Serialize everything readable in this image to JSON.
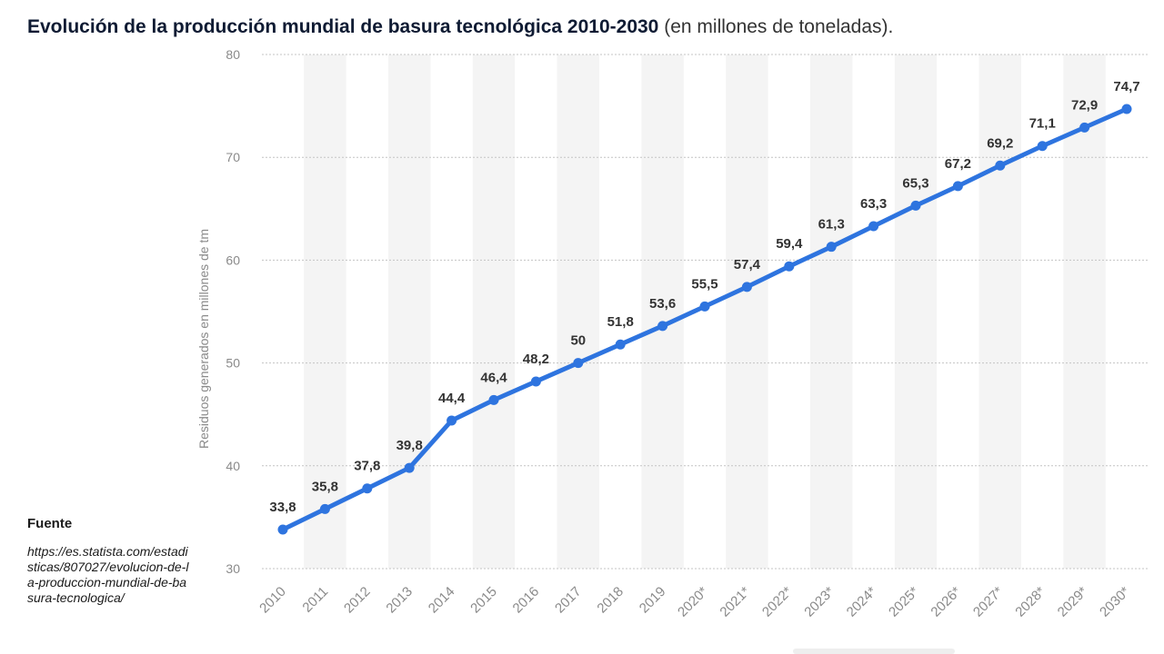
{
  "title": {
    "bold": "Evolución de la producción mundial de basura tecnológica 2010-2030",
    "normal": "(en millones de toneladas)."
  },
  "source": {
    "label": "Fuente",
    "url": "https://es.statista.com/estadisticas/807027/evolucion-de-la-produccion-mundial-de-basura-tecnologica/"
  },
  "chart_data": {
    "type": "line",
    "x": [
      "2010",
      "2011",
      "2012",
      "2013",
      "2014",
      "2015",
      "2016",
      "2017",
      "2018",
      "2019",
      "2020*",
      "2021*",
      "2022*",
      "2023*",
      "2024*",
      "2025*",
      "2026*",
      "2027*",
      "2028*",
      "2029*",
      "2030*"
    ],
    "values": [
      33.8,
      35.8,
      37.8,
      39.8,
      44.4,
      46.4,
      48.2,
      50,
      51.8,
      53.6,
      55.5,
      57.4,
      59.4,
      61.3,
      63.3,
      65.3,
      67.2,
      69.2,
      71.1,
      72.9,
      74.7
    ],
    "data_labels": [
      "33,8",
      "35,8",
      "37,8",
      "39,8",
      "44,4",
      "46,4",
      "48,2",
      "50",
      "51,8",
      "53,6",
      "55,5",
      "57,4",
      "59,4",
      "61,3",
      "63,3",
      "65,3",
      "67,2",
      "69,2",
      "71,1",
      "72,9",
      "74,7"
    ],
    "ylabel": "Residuos generados en millones de tm",
    "yticks": [
      30,
      40,
      50,
      60,
      70,
      80
    ],
    "ylim": [
      30,
      80
    ],
    "line_color": "#2e74df",
    "band_color": "#f4f4f4",
    "grid": true
  }
}
